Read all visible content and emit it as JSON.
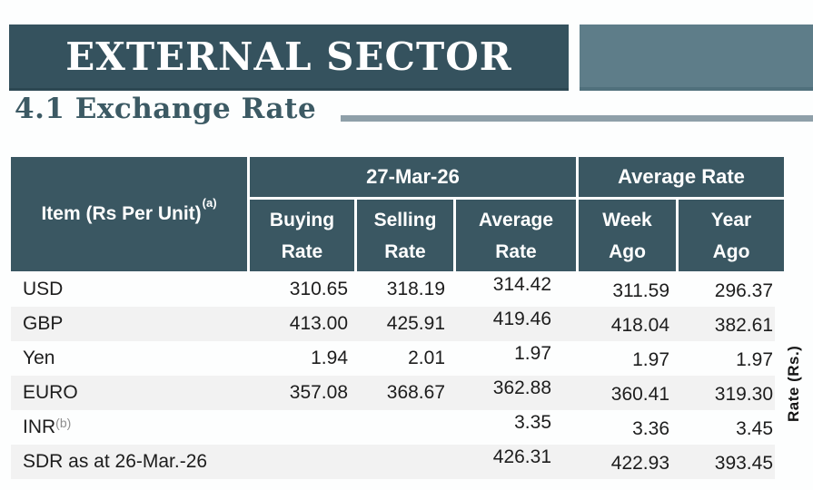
{
  "page": {
    "banner_title": "EXTERNAL SECTOR",
    "section_title": "4.1 Exchange Rate",
    "y_axis_label": "Rate (Rs.)"
  },
  "colors": {
    "banner_teal": "#35525E",
    "accent_block_teal": "#5E7D89",
    "table_header_teal": "#3A5762",
    "section_rule_gray": "#8FA0A9",
    "alt_row_gray": "#F2F2F2",
    "heading_text": "#3C5A64"
  },
  "table": {
    "item_header": "Item (Rs Per Unit)",
    "item_header_note": "(a)",
    "group_headers": {
      "date": "27-Mar-26",
      "average": "Average Rate"
    },
    "sub_headers": {
      "buying": "Buying\nRate",
      "selling": "Selling\nRate",
      "average": "Average\nRate",
      "week_ago": "Week\nAgo",
      "year_ago": "Year\nAgo"
    },
    "rows": [
      {
        "item": "USD",
        "note": "",
        "buying": "310.65",
        "selling": "318.19",
        "average": "314.42",
        "week_ago": "311.59",
        "year_ago": "296.37"
      },
      {
        "item": "GBP",
        "note": "",
        "buying": "413.00",
        "selling": "425.91",
        "average": "419.46",
        "week_ago": "418.04",
        "year_ago": "382.61"
      },
      {
        "item": "Yen",
        "note": "",
        "buying": "1.94",
        "selling": "2.01",
        "average": "1.97",
        "week_ago": "1.97",
        "year_ago": "1.97"
      },
      {
        "item": "EURO",
        "note": "",
        "buying": "357.08",
        "selling": "368.67",
        "average": "362.88",
        "week_ago": "360.41",
        "year_ago": "319.30"
      },
      {
        "item": "INR",
        "note": "(b)",
        "buying": "",
        "selling": "",
        "average": "3.35",
        "week_ago": "3.36",
        "year_ago": "3.45"
      },
      {
        "item": "SDR as at 26-Mar.-26",
        "note": "",
        "buying": "",
        "selling": "",
        "average": "426.31",
        "week_ago": "422.93",
        "year_ago": "393.45"
      }
    ]
  }
}
